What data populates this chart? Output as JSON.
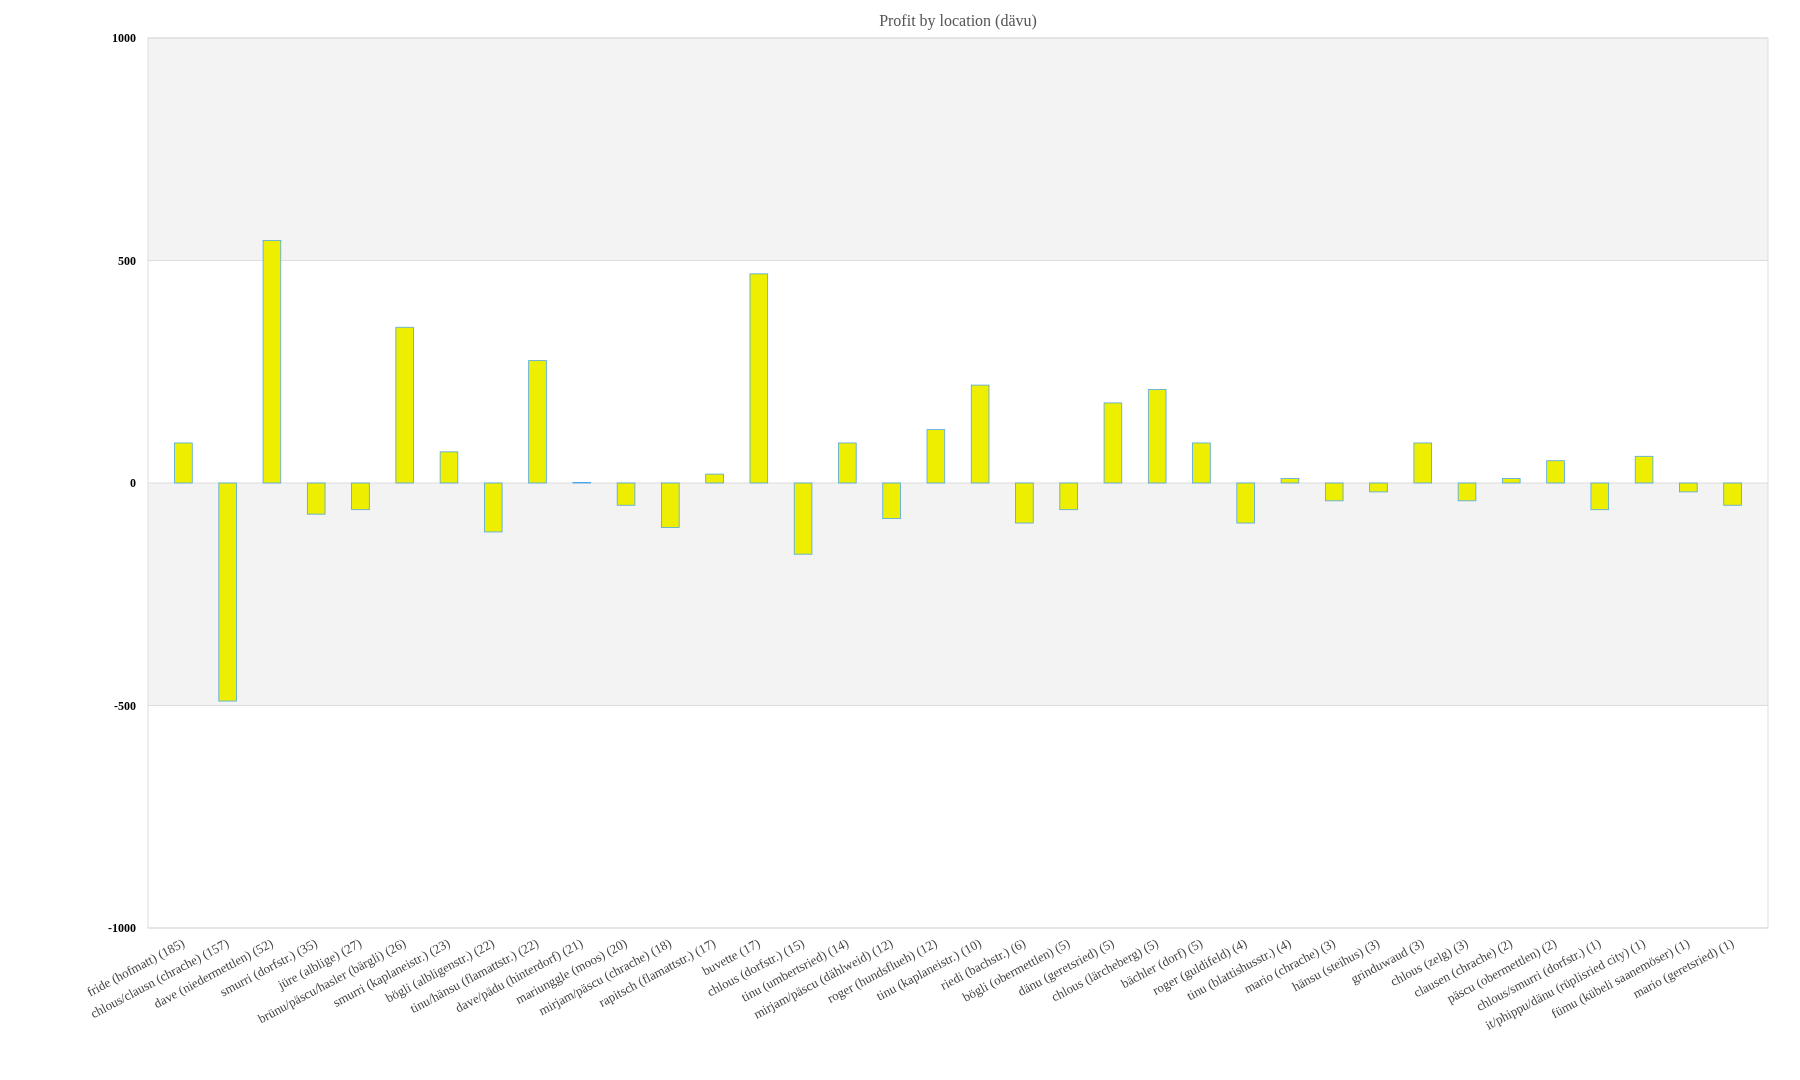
{
  "chart_data": {
    "type": "bar",
    "title": "Profit by location  (dävu)",
    "categories": [
      "fride (hofmatt) (185)",
      "chlous/clausn (chrache) (157)",
      "dave (niedermettlen) (52)",
      "smurri (dorfstr.) (35)",
      "jüre (alblige) (27)",
      "brünu/päscu/hasler (bärgli) (26)",
      "smurri (kaplaneistr.) (23)",
      "bögli (albligenstr.) (22)",
      "tinu/hänsu (flamattstr.) (22)",
      "dave/pädu (hinterdorf) (21)",
      "mariunggle (moos) (20)",
      "mirjam/päscu (chrache) (18)",
      "rapitsch (flamattstr.) (17)",
      "buvette (17)",
      "chlous (dorfstr.) (15)",
      "tinu (umbertsried) (14)",
      "mirjam/päscu (dählweid) (12)",
      "roger (hundsflueh) (12)",
      "tinu (kaplaneistr.) (10)",
      "riedi (bachstr.) (6)",
      "bögli (obermettlen) (5)",
      "dänu (geretsried) (5)",
      "chlous (lärcheberg) (5)",
      "bächler (dorf) (5)",
      "roger (guldifeld) (4)",
      "tinu (blattishusstr.) (4)",
      "mario (chrache) (3)",
      "hänsu (steihus) (3)",
      "grinduwaud (3)",
      "chlous (zelg) (3)",
      "clausen (chrache) (2)",
      "päscu (obermettlen) (2)",
      "chlous/smurri (dorfstr.) (1)",
      "it/phippu/dänu (rüplisried city) (1)",
      "fümu (kübeli saanemöser) (1)",
      "mario (geretsried) (1)"
    ],
    "values": [
      90,
      -490,
      545,
      -70,
      -60,
      350,
      70,
      -110,
      275,
      1,
      -50,
      -100,
      20,
      470,
      -160,
      90,
      -80,
      120,
      220,
      -90,
      -60,
      180,
      210,
      90,
      -90,
      10,
      -40,
      -20,
      90,
      -40,
      10,
      50,
      -60,
      60,
      -20,
      -50
    ],
    "color": "#eeee00",
    "ylim": [
      -1000,
      1000
    ],
    "yticks": [
      -1000,
      -500,
      0,
      500,
      1000
    ],
    "grid": "y",
    "bands": [
      {
        "axis": "y",
        "from": 500,
        "to": 1000,
        "color": "#f3f3f3"
      },
      {
        "axis": "y",
        "from": -500,
        "to": 0,
        "color": "#f3f3f3"
      }
    ]
  }
}
